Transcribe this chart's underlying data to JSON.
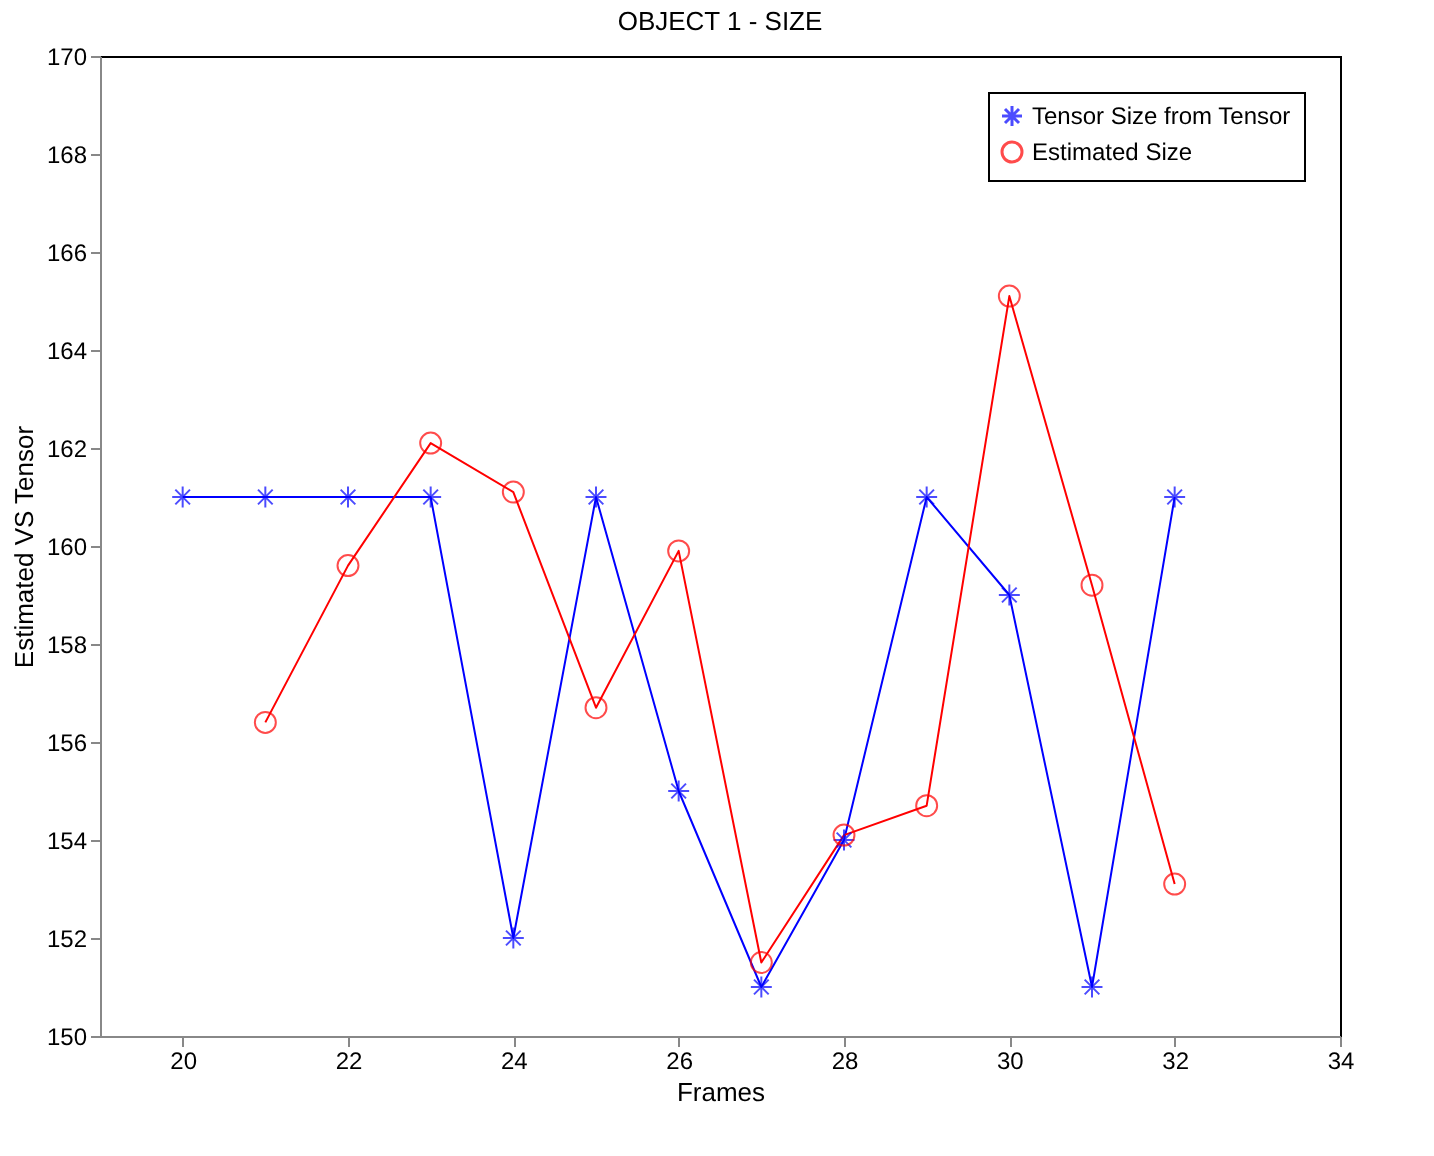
{
  "chart_data": {
    "type": "line",
    "title": "OBJECT 1 - SIZE",
    "xlabel": "Frames",
    "ylabel": "Estimated VS Tensor",
    "xlim": [
      19,
      34
    ],
    "xticks": [
      20,
      22,
      24,
      26,
      28,
      30,
      32,
      34
    ],
    "ylim": [
      150,
      170
    ],
    "yticks": [
      150,
      152,
      154,
      156,
      158,
      160,
      162,
      164,
      166,
      168,
      170
    ],
    "grid": false,
    "legend": "top right",
    "line_style": "solid",
    "series": [
      {
        "name": "Tensor Size from Tensor",
        "color": "#0000ff",
        "marker": "cross",
        "x": [
          20,
          21,
          22,
          23,
          24,
          25,
          26,
          27,
          28,
          29,
          30,
          31,
          32
        ],
        "values": [
          161,
          161,
          161,
          161,
          152,
          161,
          155,
          151,
          154,
          161,
          159,
          151,
          161
        ]
      },
      {
        "name": "Estimated Size",
        "color": "#ff0000",
        "marker": "circle",
        "x": [
          21,
          22,
          23,
          24,
          25,
          26,
          27,
          28,
          29,
          30,
          31,
          32
        ],
        "values": [
          156.4,
          159.6,
          162.1,
          161.1,
          156.7,
          159.9,
          151.5,
          154.1,
          154.7,
          165.1,
          159.2,
          153.1
        ]
      }
    ]
  }
}
